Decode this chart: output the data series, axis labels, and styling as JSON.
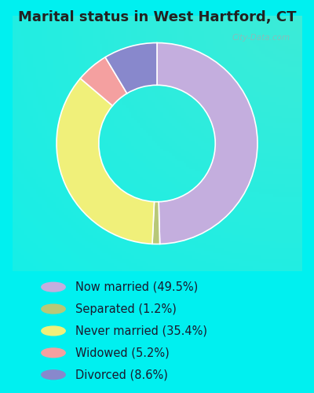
{
  "title": "Marital status in West Hartford, CT",
  "slices": [
    49.5,
    1.2,
    35.4,
    5.2,
    8.6
  ],
  "labels": [
    "Now married (49.5%)",
    "Separated (1.2%)",
    "Never married (35.4%)",
    "Widowed (5.2%)",
    "Divorced (8.6%)"
  ],
  "colors": [
    "#c4aede",
    "#b8c878",
    "#f0f07a",
    "#f4a0a0",
    "#8888cc"
  ],
  "start_angle": 90,
  "cyan_bg": "#00f0f0",
  "chart_bg_color": "#d8eedc",
  "title_fontsize": 13,
  "legend_fontsize": 10.5,
  "title_color": "#222222",
  "watermark": "City-Data.com"
}
